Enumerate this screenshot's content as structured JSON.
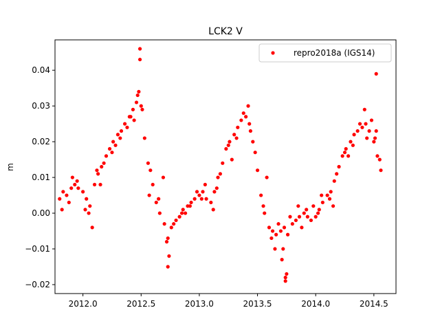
{
  "chart_data": {
    "type": "scatter",
    "title": "LCK2 V",
    "xlabel": "",
    "ylabel": "m",
    "xlim": [
      2011.76,
      2014.69
    ],
    "ylim": [
      -0.0225,
      0.0485
    ],
    "x_ticks": [
      2012.0,
      2012.5,
      2013.0,
      2013.5,
      2014.0,
      2014.5
    ],
    "x_tick_labels": [
      "2012.0",
      "2012.5",
      "2013.0",
      "2013.5",
      "2014.0",
      "2014.5"
    ],
    "y_ticks": [
      -0.02,
      -0.01,
      0.0,
      0.01,
      0.02,
      0.03,
      0.04
    ],
    "y_tick_labels": [
      "−0.02",
      "−0.01",
      "0.00",
      "0.01",
      "0.02",
      "0.03",
      "0.04"
    ],
    "grid": false,
    "legend_position": "top-right",
    "series": [
      {
        "name": "repro2018a (IGS14)",
        "color": "#ff0000",
        "marker": "circle",
        "x": [
          2011.8,
          2011.83,
          2011.86,
          2011.9,
          2011.93,
          2011.96,
          2012.0,
          2012.03,
          2012.06,
          2012.1,
          2012.13,
          2012.16,
          2012.2,
          2012.23,
          2012.26,
          2012.3,
          2012.33,
          2012.36,
          2012.4,
          2012.43,
          2012.46,
          2012.48,
          2012.5,
          2012.53,
          2012.56,
          2012.6,
          2012.63,
          2012.66,
          2012.7,
          2012.73,
          2012.76,
          2012.8,
          2012.83,
          2012.86,
          2012.9,
          2012.93,
          2012.96,
          2013.0,
          2013.03,
          2013.06,
          2013.1,
          2013.13,
          2013.16,
          2013.2,
          2013.23,
          2013.26,
          2013.3,
          2013.33,
          2013.36,
          2013.4,
          2013.43,
          2013.46,
          2013.5,
          2013.53,
          2013.56,
          2013.6,
          2013.63,
          2013.66,
          2013.7,
          2013.73,
          2013.76,
          2013.8,
          2013.83,
          2013.86,
          2013.9,
          2013.93,
          2013.96,
          2014.0,
          2014.03,
          2014.06,
          2014.1,
          2014.13,
          2014.16,
          2014.2,
          2014.23,
          2014.26,
          2014.3,
          2014.33,
          2014.36,
          2014.4,
          2014.43,
          2014.46,
          2014.5,
          2014.53,
          2014.56,
          2011.82,
          2011.88,
          2011.95,
          2012.02,
          2012.08,
          2012.12,
          2012.18,
          2012.25,
          2012.32,
          2012.38,
          2012.44,
          2012.47,
          2012.51,
          2012.58,
          2012.65,
          2012.72,
          2012.78,
          2012.85,
          2012.92,
          2012.98,
          2013.05,
          2013.12,
          2013.18,
          2013.25,
          2013.32,
          2013.38,
          2013.42,
          2013.48,
          2013.55,
          2013.62,
          2013.68,
          2013.72,
          2013.78,
          2013.85,
          2013.92,
          2013.98,
          2014.05,
          2014.12,
          2014.18,
          2014.25,
          2014.32,
          2014.38,
          2014.42,
          2014.48,
          2014.51,
          2014.55,
          2011.91,
          2012.05,
          2012.15,
          2012.28,
          2012.41,
          2012.57,
          2012.69,
          2012.74,
          2012.88,
          2013.02,
          2013.15,
          2013.28,
          2013.44,
          2013.58,
          2013.65,
          2013.71,
          2013.75,
          2013.88,
          2014.02,
          2014.15,
          2014.28,
          2014.44,
          2014.52,
          2012.49,
          2012.49,
          2012.73,
          2013.74,
          2013.74,
          2014.52
        ],
        "y": [
          0.004,
          0.006,
          0.005,
          0.007,
          0.008,
          0.007,
          0.006,
          0.004,
          0.002,
          0.008,
          0.011,
          0.013,
          0.016,
          0.018,
          0.02,
          0.022,
          0.023,
          0.025,
          0.027,
          0.029,
          0.031,
          0.034,
          0.03,
          0.021,
          0.014,
          0.008,
          0.003,
          0.0,
          -0.003,
          -0.007,
          -0.004,
          -0.002,
          -0.001,
          0.001,
          0.002,
          0.003,
          0.004,
          0.005,
          0.006,
          0.004,
          0.003,
          0.006,
          0.01,
          0.014,
          0.018,
          0.02,
          0.022,
          0.024,
          0.026,
          0.027,
          0.025,
          0.02,
          0.012,
          0.005,
          0.0,
          -0.004,
          -0.005,
          -0.006,
          -0.005,
          -0.004,
          -0.006,
          -0.003,
          -0.002,
          -0.001,
          0.0,
          -0.001,
          -0.002,
          -0.001,
          0.001,
          0.003,
          0.005,
          0.006,
          0.009,
          0.013,
          0.016,
          0.018,
          0.02,
          0.022,
          0.023,
          0.024,
          0.025,
          0.023,
          0.02,
          0.016,
          0.012,
          0.001,
          0.003,
          0.009,
          0.001,
          -0.004,
          0.012,
          0.014,
          0.017,
          0.021,
          0.024,
          0.026,
          0.033,
          0.029,
          0.012,
          0.004,
          -0.008,
          -0.003,
          0.0,
          0.002,
          0.006,
          0.008,
          0.001,
          0.011,
          0.019,
          0.021,
          0.028,
          0.03,
          0.017,
          0.002,
          -0.007,
          -0.003,
          -0.01,
          -0.001,
          0.002,
          0.001,
          0.002,
          0.005,
          0.004,
          0.011,
          0.017,
          0.019,
          0.025,
          0.029,
          0.026,
          0.021,
          0.015,
          0.01,
          0.0,
          0.008,
          0.019,
          0.027,
          0.005,
          0.01,
          -0.012,
          0.0,
          0.004,
          0.007,
          0.015,
          0.023,
          0.01,
          -0.01,
          -0.013,
          -0.017,
          -0.004,
          0.0,
          0.002,
          0.016,
          0.021,
          0.023,
          0.046,
          0.043,
          -0.015,
          -0.019,
          -0.018,
          0.039
        ]
      }
    ]
  }
}
